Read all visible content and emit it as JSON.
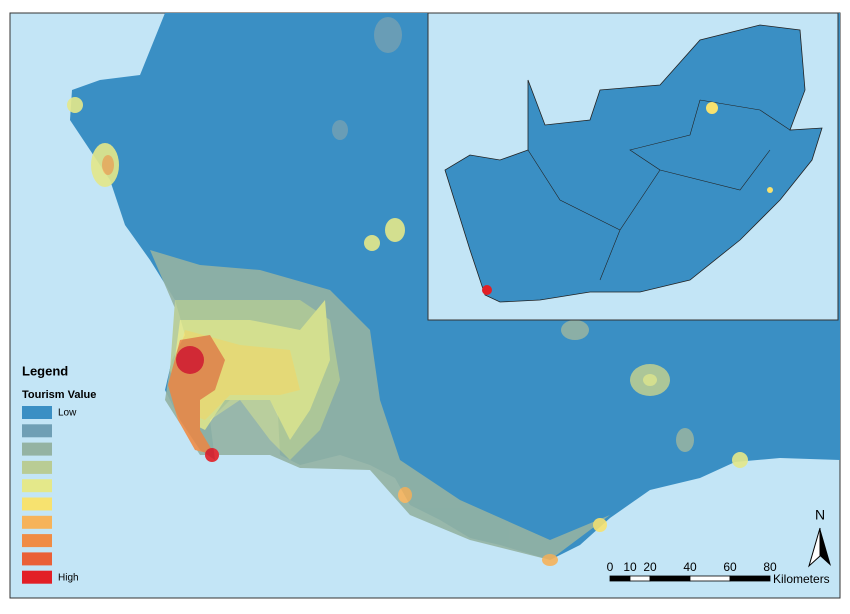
{
  "legend": {
    "title": "Legend",
    "subtitle": "Tourism Value",
    "low_label": "Low",
    "high_label": "High",
    "colors": [
      "#3a8fc4",
      "#6f9fb5",
      "#94b3a3",
      "#b9cc94",
      "#e4e88a",
      "#f7e26f",
      "#f6b35a",
      "#f08c45",
      "#ea6037",
      "#e21f26"
    ]
  },
  "scale_bar": {
    "ticks": [
      0,
      10,
      20,
      40,
      60,
      80
    ],
    "unit": "Kilometers"
  },
  "north_arrow": {
    "label": "N"
  }
}
